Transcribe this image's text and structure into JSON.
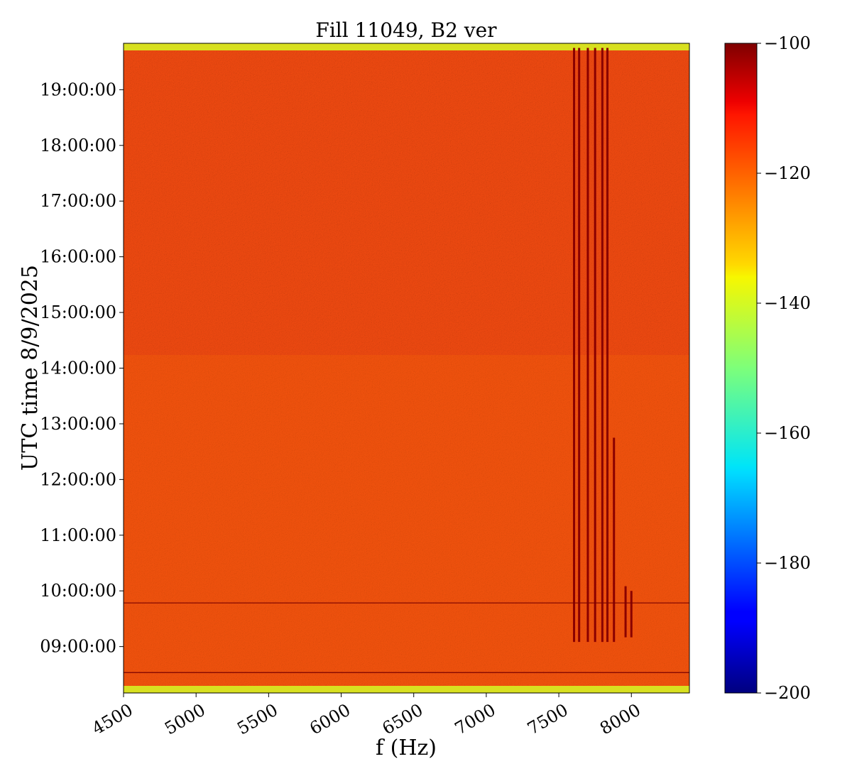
{
  "chart_data": {
    "type": "heatmap",
    "title": "Fill 11049, B2 ver",
    "xlabel": "f (Hz)",
    "ylabel": "UTC time 8/9/2025",
    "xlim": [
      4500,
      8400
    ],
    "ylim": [
      "08:10:00",
      "19:50:00"
    ],
    "x_ticks": [
      4500,
      5000,
      5500,
      6000,
      6500,
      7000,
      7500,
      8000
    ],
    "x_tick_labels": [
      "4500",
      "5000",
      "5500",
      "6000",
      "6500",
      "7000",
      "7500",
      "8000"
    ],
    "y_ticks": [
      "09:00:00",
      "10:00:00",
      "11:00:00",
      "12:00:00",
      "13:00:00",
      "14:00:00",
      "15:00:00",
      "16:00:00",
      "17:00:00",
      "18:00:00",
      "19:00:00"
    ],
    "colormap": "jet",
    "colorbar": {
      "min": -200,
      "max": -100,
      "ticks": [
        -100,
        -120,
        -140,
        -160,
        -180,
        -200
      ],
      "tick_labels": [
        "−100",
        "−120",
        "−140",
        "−160",
        "−180",
        "−200"
      ]
    },
    "background_level": -112,
    "edge_band_level": -135,
    "spectral_lines": [
      {
        "f": 7605,
        "start": "09:05:00",
        "end": "19:45:00"
      },
      {
        "f": 7640,
        "start": "09:05:00",
        "end": "19:45:00"
      },
      {
        "f": 7700,
        "start": "09:05:00",
        "end": "19:45:00"
      },
      {
        "f": 7750,
        "start": "09:05:00",
        "end": "19:45:00"
      },
      {
        "f": 7800,
        "start": "09:05:00",
        "end": "19:45:00"
      },
      {
        "f": 7835,
        "start": "09:05:00",
        "end": "19:45:00"
      },
      {
        "f": 7880,
        "start": "09:05:00",
        "end": "12:45:00"
      },
      {
        "f": 7960,
        "start": "09:10:00",
        "end": "10:05:00"
      },
      {
        "f": 8000,
        "start": "09:10:00",
        "end": "10:00:00"
      }
    ],
    "horizontal_lines": [
      {
        "t": "09:47:00"
      },
      {
        "t": "08:32:00"
      }
    ]
  }
}
